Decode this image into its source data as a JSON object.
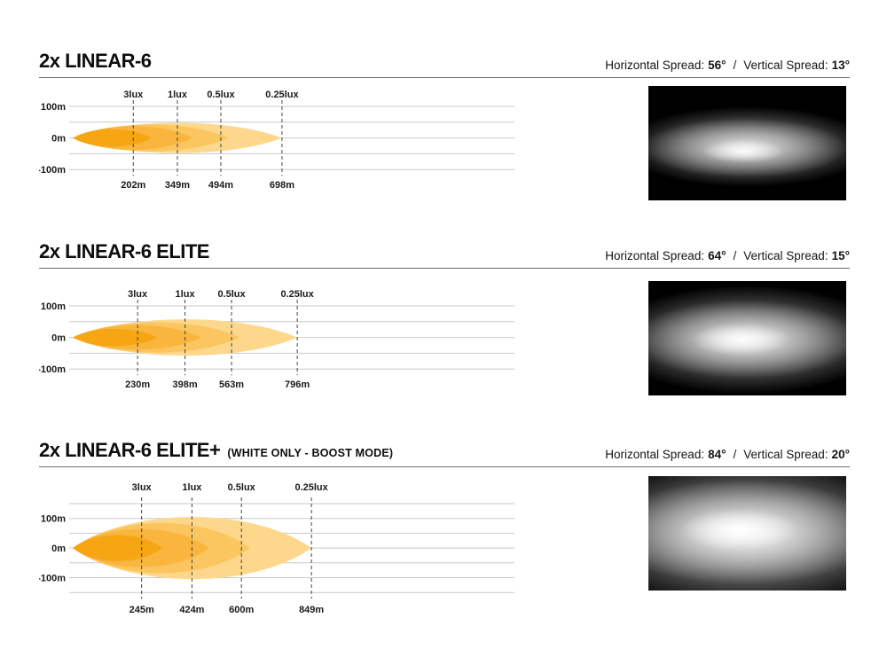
{
  "colors": {
    "background": "#ffffff",
    "text": "#111111",
    "rule": "#6e6e6e",
    "gridline": "#c9c9c9",
    "dashed_marker": "#444444",
    "photo_background": "#000000",
    "beam_palette_inner_to_outer": [
      "#F6A513",
      "#F9B53E",
      "#FBC55F",
      "#FDD88C"
    ]
  },
  "sections": [
    {
      "title": "2x LINEAR-6",
      "title_suffix": "",
      "spread": {
        "h_label": "Horizontal Spread:",
        "h_value": "56°",
        "sep": "/",
        "v_label": "Vertical Spread:",
        "v_value": "13°"
      }
    },
    {
      "title": "2x LINEAR-6 ELITE",
      "title_suffix": "",
      "spread": {
        "h_label": "Horizontal Spread:",
        "h_value": "64°",
        "sep": "/",
        "v_label": "Vertical Spread:",
        "v_value": "15°"
      }
    },
    {
      "title": "2x LINEAR-6 ELITE+",
      "title_suffix": "(WHITE ONLY - BOOST MODE)",
      "spread": {
        "h_label": "Horizontal Spread:",
        "h_value": "84°",
        "sep": "/",
        "v_label": "Vertical Spread:",
        "v_value": "20°"
      }
    }
  ],
  "chart_data": [
    {
      "type": "area",
      "subtype": "isolux-beam-contour",
      "title": "2x LINEAR-6",
      "horizontal_spread_deg": 56,
      "vertical_spread_deg": 13,
      "lux_levels": [
        3,
        1,
        0.5,
        0.25
      ],
      "lux_labels": [
        "3lux",
        "1lux",
        "0.5lux",
        "0.25lux"
      ],
      "distances_m": [
        202,
        349,
        494,
        698
      ],
      "distance_labels": [
        "202m",
        "349m",
        "494m",
        "698m"
      ],
      "y_axis": {
        "ticks": [
          "100m",
          "0m",
          "-100m"
        ],
        "gridlines_m": [
          100,
          50,
          0,
          -50,
          -100
        ],
        "range_m": [
          -100,
          100
        ]
      },
      "contour_colors_inner_to_outer": [
        "#F6A513",
        "#F9B53E",
        "#FBC55F",
        "#FDD88C"
      ],
      "grid": true,
      "legend": false
    },
    {
      "type": "area",
      "subtype": "isolux-beam-contour",
      "title": "2x LINEAR-6 ELITE",
      "horizontal_spread_deg": 64,
      "vertical_spread_deg": 15,
      "lux_levels": [
        3,
        1,
        0.5,
        0.25
      ],
      "lux_labels": [
        "3lux",
        "1lux",
        "0.5lux",
        "0.25lux"
      ],
      "distances_m": [
        230,
        398,
        563,
        796
      ],
      "distance_labels": [
        "230m",
        "398m",
        "563m",
        "796m"
      ],
      "y_axis": {
        "ticks": [
          "100m",
          "0m",
          "-100m"
        ],
        "gridlines_m": [
          100,
          50,
          0,
          -50,
          -100
        ],
        "range_m": [
          -100,
          100
        ]
      },
      "contour_colors_inner_to_outer": [
        "#F6A513",
        "#F9B53E",
        "#FBC55F",
        "#FDD88C"
      ],
      "grid": true,
      "legend": false
    },
    {
      "type": "area",
      "subtype": "isolux-beam-contour",
      "title": "2x LINEAR-6 ELITE+ (WHITE ONLY - BOOST MODE)",
      "horizontal_spread_deg": 84,
      "vertical_spread_deg": 20,
      "lux_levels": [
        3,
        1,
        0.5,
        0.25
      ],
      "lux_labels": [
        "3lux",
        "1lux",
        "0.5lux",
        "0.25lux"
      ],
      "distances_m": [
        245,
        424,
        600,
        849
      ],
      "distance_labels": [
        "245m",
        "424m",
        "600m",
        "849m"
      ],
      "y_axis": {
        "ticks": [
          "100m",
          "0m",
          "-100m"
        ],
        "gridlines_m": [
          150,
          100,
          50,
          0,
          -50,
          -100,
          -150
        ],
        "range_m": [
          -150,
          150
        ]
      },
      "contour_colors_inner_to_outer": [
        "#F6A513",
        "#F9B53E",
        "#FBC55F",
        "#FDD88C"
      ],
      "grid": true,
      "legend": false
    }
  ]
}
